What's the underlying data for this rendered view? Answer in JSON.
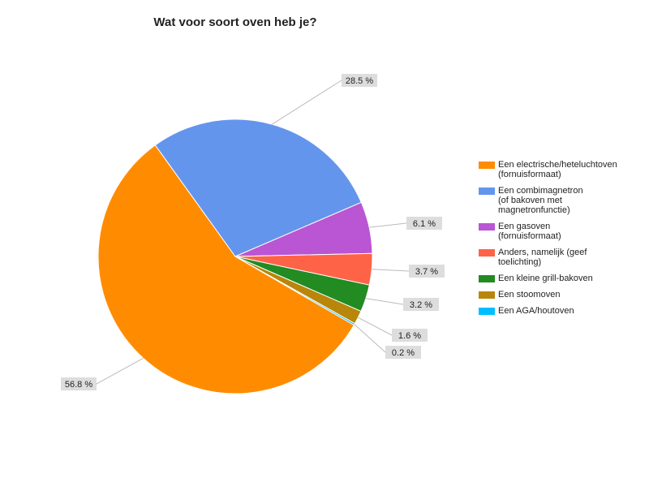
{
  "chart_data": {
    "type": "pie",
    "title": "Wat voor soort oven heb je?",
    "categories": [
      "Een electrische/heteluchtoven (fornuisformaat)",
      "Een combimagnetron (of bakoven met magnetronfunctie)",
      "Een gasoven (fornuisformaat)",
      "Anders, namelijk (geef toelichting)",
      "Een kleine grill-bakoven",
      "Een stoomoven",
      "Een AGA/houtoven"
    ],
    "values": [
      56.8,
      28.5,
      6.1,
      3.7,
      3.2,
      1.6,
      0.2
    ],
    "value_labels": [
      "56.8 %",
      "28.5 %",
      "6.1 %",
      "3.7 %",
      "3.2 %",
      "1.6 %",
      "0.2 %"
    ],
    "colors": [
      "#ff8c00",
      "#6495ed",
      "#ba55d3",
      "#ff6347",
      "#228b22",
      "#b8860b",
      "#00bfff"
    ],
    "legend": "right"
  }
}
